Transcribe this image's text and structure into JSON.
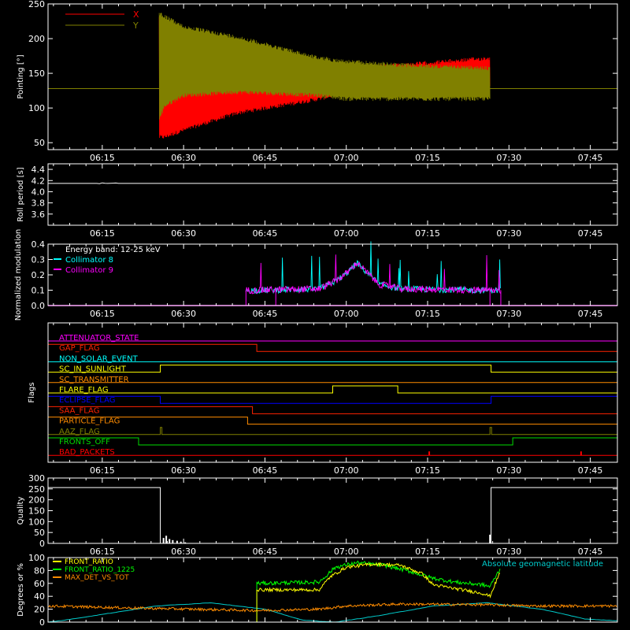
{
  "chart_data": [
    {
      "type": "line",
      "ylabel": "Pointing [°]",
      "xlim_min": [
        5,
        50
      ],
      "ylim": [
        40,
        250
      ],
      "yticks": [
        50,
        100,
        150,
        200,
        250
      ],
      "series": [
        {
          "name": "X",
          "color": "#ff0000",
          "start": 25.5,
          "end": 86.5,
          "baseline": 128,
          "env": [
            [
              25.5,
              55,
              235
            ],
            [
              26.5,
              55,
              200
            ],
            [
              30,
              65,
              160
            ],
            [
              40,
              90,
              145
            ],
            [
              55,
              110,
              150
            ],
            [
              60,
              120,
              158
            ],
            [
              70,
              125,
              165
            ],
            [
              86.5,
              130,
              175
            ]
          ]
        },
        {
          "name": "Y",
          "color": "#808000",
          "start": 25.5,
          "end": 86.5,
          "baseline": 128,
          "env": [
            [
              25.5,
              80,
              240
            ],
            [
              26.5,
              100,
              235
            ],
            [
              30,
              115,
              220
            ],
            [
              40,
              120,
              205
            ],
            [
              55,
              115,
              175
            ],
            [
              60,
              110,
              170
            ],
            [
              70,
              110,
              165
            ],
            [
              86.5,
              110,
              160
            ]
          ]
        }
      ]
    },
    {
      "type": "line",
      "ylabel": "Roll period [s]",
      "ylim": [
        3.4,
        4.5
      ],
      "yticks": [
        "3.6",
        "3.8",
        "4.0",
        "4.2",
        "4.4"
      ],
      "series": [
        {
          "name": "",
          "color": "#ffffff",
          "value": 4.15
        }
      ]
    },
    {
      "type": "line",
      "ylabel": "Normalized modulation",
      "ylim": [
        0,
        0.4
      ],
      "yticks": [
        "0.0",
        "0.1",
        "0.2",
        "0.3",
        "0.4"
      ],
      "annotation": "Energy band: 12-25 keV",
      "series": [
        {
          "name": "Collimator 8",
          "color": "#00ffff",
          "start": 41.5,
          "end": 88.5
        },
        {
          "name": "Collimator 9",
          "color": "#ff00ff",
          "start": 41.5,
          "end": 88.5
        }
      ],
      "profile": [
        [
          41.5,
          0.09
        ],
        [
          55,
          0.1
        ],
        [
          58,
          0.15
        ],
        [
          60,
          0.2
        ],
        [
          62,
          0.27
        ],
        [
          64,
          0.2
        ],
        [
          66,
          0.13
        ],
        [
          70,
          0.1
        ],
        [
          88.5,
          0.09
        ]
      ]
    },
    {
      "type": "line",
      "ylabel": "Flags",
      "flags": [
        {
          "name": "ATTENUATOR_STATE",
          "color": "#ff00ff",
          "steps": [
            [
              5,
              0
            ],
            [
              95,
              0
            ]
          ]
        },
        {
          "name": "GAP_FLAG",
          "color": "#ff2200",
          "steps": [
            [
              5,
              1
            ],
            [
              43.5,
              0
            ]
          ]
        },
        {
          "name": "NON_SOLAR_EVENT",
          "color": "#00ffff",
          "steps": [
            [
              5,
              0
            ]
          ]
        },
        {
          "name": "SC_IN_SUNLIGHT",
          "color": "#ffff00",
          "steps": [
            [
              5,
              0
            ],
            [
              25.7,
              1
            ],
            [
              86.7,
              0
            ]
          ]
        },
        {
          "name": "SC_TRANSMITTER",
          "color": "#ff8c00",
          "steps": [
            [
              5,
              0
            ]
          ]
        },
        {
          "name": "FLARE_FLAG",
          "color": "#ffff00",
          "steps": [
            [
              5,
              0
            ],
            [
              57.5,
              1
            ],
            [
              69.5,
              0
            ]
          ]
        },
        {
          "name": "ECLIPSE_FLAG",
          "color": "#0000ff",
          "steps": [
            [
              5,
              1
            ],
            [
              25.7,
              0
            ],
            [
              86.7,
              1
            ]
          ]
        },
        {
          "name": "SAA_FLAG",
          "color": "#ff2200",
          "steps": [
            [
              5,
              1
            ],
            [
              42.7,
              0
            ]
          ]
        },
        {
          "name": "PARTICLE_FLAG",
          "color": "#ff8c00",
          "steps": [
            [
              5,
              1
            ],
            [
              41.8,
              0
            ]
          ]
        },
        {
          "name": "AAZ_FLAG",
          "color": "#808000",
          "steps": [
            [
              5,
              0
            ],
            [
              25.7,
              1
            ],
            [
              26.0,
              0
            ],
            [
              86.5,
              1
            ],
            [
              86.8,
              0
            ]
          ]
        },
        {
          "name": "FRONTS_OFF",
          "color": "#00dd00",
          "steps": [
            [
              5,
              1
            ],
            [
              21.7,
              0
            ],
            [
              90.7,
              1
            ]
          ]
        },
        {
          "name": "BAD_PACKETS",
          "color": "#ff0000",
          "steps": [
            [
              5,
              0
            ]
          ],
          "spikes": [
            75.3,
            103.3
          ]
        }
      ]
    },
    {
      "type": "line",
      "ylabel": "Quality",
      "ylim": [
        0,
        300
      ],
      "yticks": [
        0,
        50,
        100,
        150,
        200,
        250,
        300
      ],
      "series": [
        {
          "name": "",
          "color": "#ffffff",
          "steps": [
            [
              5,
              256
            ],
            [
              25.7,
              0
            ],
            [
              86.7,
              256
            ]
          ],
          "spikes": [
            [
              26.3,
              25
            ],
            [
              26.8,
              35
            ],
            [
              27.4,
              20
            ],
            [
              28.0,
              15
            ],
            [
              28.8,
              12
            ],
            [
              29.5,
              8
            ],
            [
              30.3,
              5
            ],
            [
              86.5,
              40
            ]
          ]
        }
      ]
    },
    {
      "type": "line",
      "ylabel": "Degrees or %",
      "ylim": [
        0,
        100
      ],
      "yticks": [
        0,
        20,
        40,
        60,
        80,
        100
      ],
      "annotation": "Absolute geomagnetic latitude",
      "series": [
        {
          "name": "FRONT_RATIO",
          "color": "#ffff00",
          "start": 43.5,
          "end": 88.5,
          "profile": [
            [
              43.5,
              50
            ],
            [
              50,
              50
            ],
            [
              55,
              50
            ],
            [
              57,
              70
            ],
            [
              60,
              85
            ],
            [
              65,
              90
            ],
            [
              70,
              88
            ],
            [
              74,
              75
            ],
            [
              76,
              58
            ],
            [
              80,
              52
            ],
            [
              85,
              45
            ],
            [
              86.5,
              40
            ],
            [
              88.5,
              80
            ]
          ]
        },
        {
          "name": "FRONT_RATIO_1225",
          "color": "#00ff00",
          "start": 43.5,
          "end": 88.5,
          "profile": [
            [
              43.5,
              60
            ],
            [
              55,
              62
            ],
            [
              58,
              85
            ],
            [
              62,
              92
            ],
            [
              67,
              88
            ],
            [
              72,
              78
            ],
            [
              76,
              68
            ],
            [
              80,
              62
            ],
            [
              85,
              58
            ],
            [
              86.5,
              55
            ],
            [
              88.5,
              85
            ]
          ]
        },
        {
          "name": "MAX_DET_VS_TOT",
          "color": "#ff8c00",
          "start": 5,
          "end": 110,
          "profile": [
            [
              5,
              25
            ],
            [
              20,
              22
            ],
            [
              43.5,
              18
            ],
            [
              55,
              20
            ],
            [
              60,
              25
            ],
            [
              70,
              28
            ],
            [
              85,
              27
            ],
            [
              95,
              25
            ],
            [
              110,
              25
            ]
          ]
        },
        {
          "name": "",
          "color": "#00cccc",
          "start": 5,
          "end": 110,
          "profile": [
            [
              5,
              0
            ],
            [
              8,
              3
            ],
            [
              15,
              12
            ],
            [
              25,
              25
            ],
            [
              35,
              30
            ],
            [
              45,
              20
            ],
            [
              52,
              3
            ],
            [
              58,
              0
            ],
            [
              66,
              10
            ],
            [
              76,
              25
            ],
            [
              86,
              30
            ],
            [
              96,
              20
            ],
            [
              104,
              5
            ],
            [
              110,
              2
            ]
          ]
        }
      ]
    }
  ],
  "xaxis": {
    "ticks": [
      "06:15",
      "06:30",
      "06:45",
      "07:00",
      "07:15",
      "07:30",
      "07:45"
    ],
    "tick_minutes": [
      15,
      30,
      45,
      60,
      75,
      90,
      105
    ],
    "xlim_minutes": [
      5,
      110
    ]
  }
}
